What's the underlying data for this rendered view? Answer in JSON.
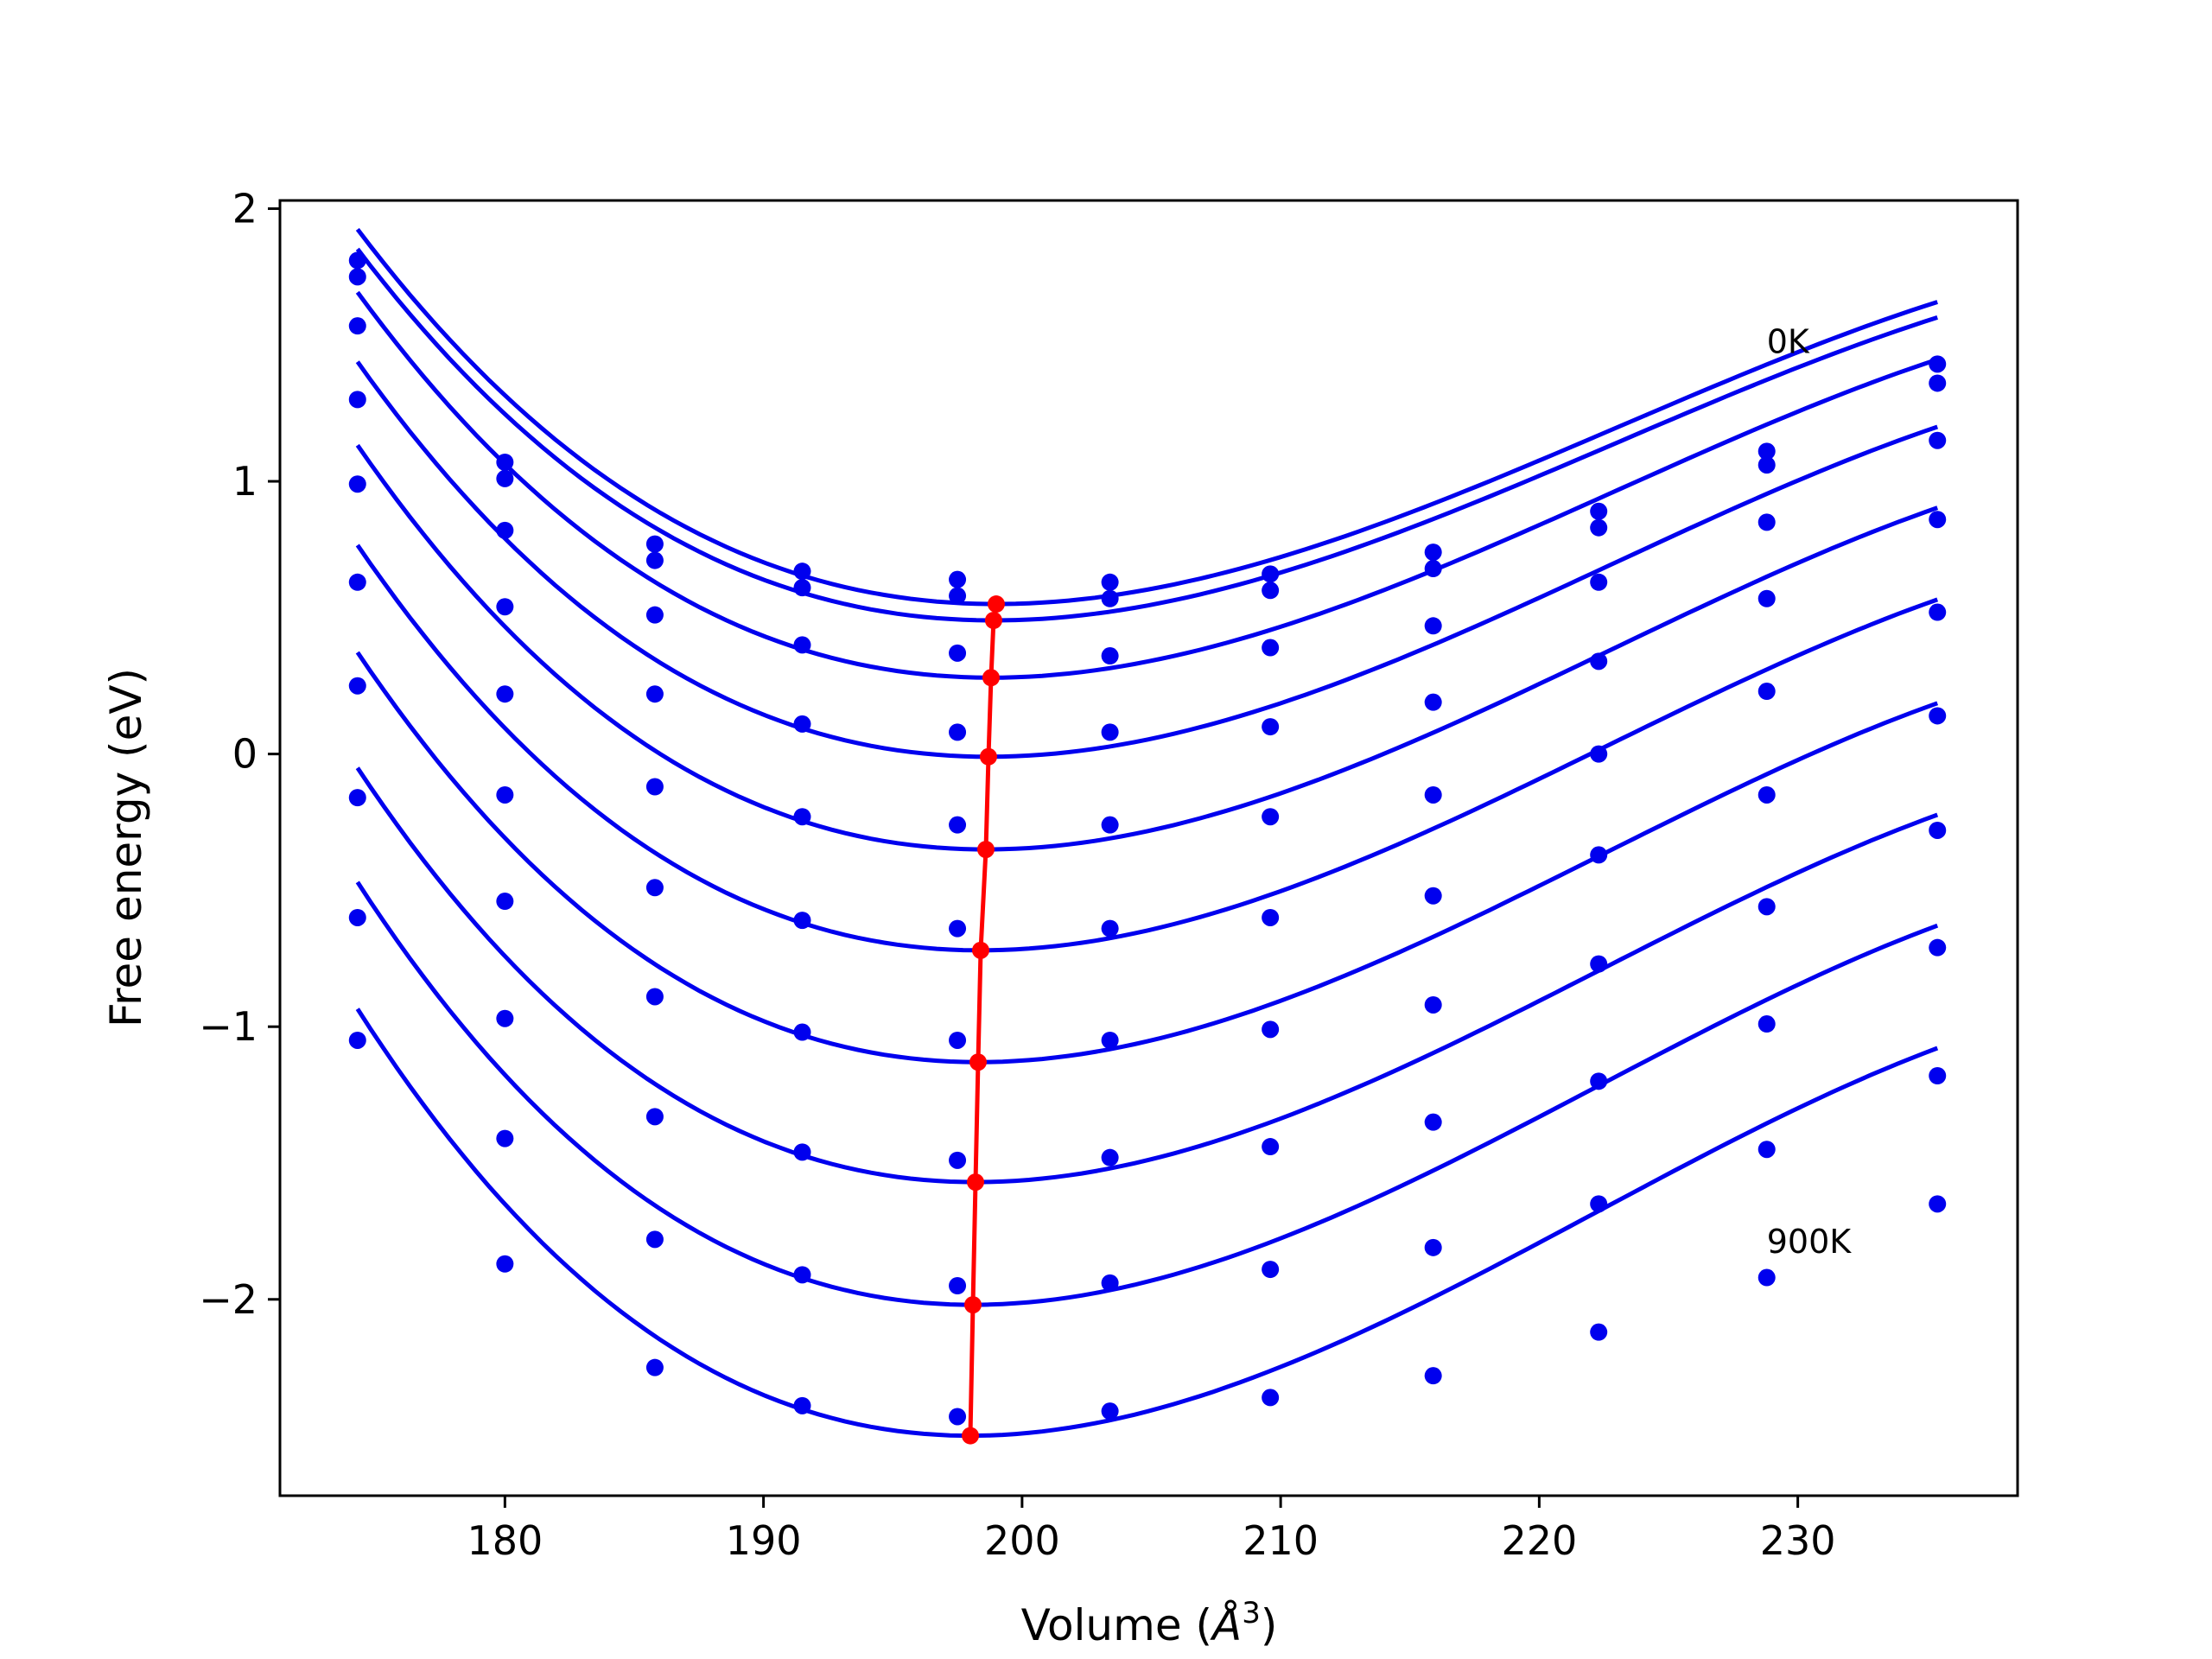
{
  "chart_data": {
    "type": "line",
    "xlabel": "Volume (",
    "xlabel_unit": "Å",
    "xlabel_exp": "3",
    "xlabel_close": ")",
    "ylabel": "Free energy (eV)",
    "xlim": [
      171.3,
      238.5
    ],
    "ylim": [
      -2.72,
      2.03
    ],
    "xticks": [
      180,
      190,
      200,
      210,
      220,
      230
    ],
    "yticks": [
      -2,
      -1,
      0,
      1,
      2
    ],
    "xtick_labels": [
      "180",
      "190",
      "200",
      "210",
      "220",
      "230"
    ],
    "ytick_labels": [
      "−2",
      "−1",
      "0",
      "1",
      "2"
    ],
    "grid": false,
    "legend": "none",
    "annotations": [
      {
        "text": "0K",
        "x": 228.8,
        "y": 1.47
      },
      {
        "text": "900K",
        "x": 228.8,
        "y": -1.83
      }
    ],
    "colors": {
      "fit": "#0000ee",
      "points": "#0000ee",
      "minimum": "#ff0000"
    },
    "volumes": [
      174.3,
      180.0,
      185.8,
      191.5,
      197.5,
      203.4,
      209.6,
      215.9,
      222.3,
      228.8,
      235.4
    ],
    "series": [
      {
        "points": [
          1.81,
          1.07,
          0.77,
          0.67,
          0.64,
          0.63,
          0.66,
          0.74,
          0.89,
          1.11,
          1.43
        ],
        "fit": {
          "v0": 199.0,
          "e0": 0.55,
          "a": 0.00168,
          "b": 0.0138
        }
      },
      {
        "points": [
          1.75,
          1.01,
          0.71,
          0.61,
          0.58,
          0.57,
          0.6,
          0.68,
          0.83,
          1.06,
          1.36
        ],
        "fit": {
          "v0": 198.9,
          "e0": 0.49,
          "a": 0.00168,
          "b": 0.0138
        }
      },
      {
        "points": [
          1.57,
          0.82,
          0.51,
          0.4,
          0.37,
          0.36,
          0.39,
          0.47,
          0.63,
          0.85,
          1.15
        ],
        "fit": {
          "v0": 198.8,
          "e0": 0.28,
          "a": 0.00176,
          "b": 0.0138
        }
      },
      {
        "points": [
          1.3,
          0.54,
          0.22,
          0.11,
          0.08,
          0.08,
          0.1,
          0.19,
          0.34,
          0.57,
          0.86
        ],
        "fit": {
          "v0": 198.7,
          "e0": -0.01,
          "a": 0.00182,
          "b": 0.0138
        }
      },
      {
        "points": [
          0.99,
          0.22,
          -0.12,
          -0.23,
          -0.26,
          -0.26,
          -0.23,
          -0.15,
          0.0,
          0.23,
          0.52
        ],
        "fit": {
          "v0": 198.6,
          "e0": -0.35,
          "a": 0.00188,
          "b": 0.0138
        }
      },
      {
        "points": [
          0.63,
          -0.15,
          -0.49,
          -0.61,
          -0.64,
          -0.64,
          -0.6,
          -0.52,
          -0.37,
          -0.15,
          0.14
        ],
        "fit": {
          "v0": 198.4,
          "e0": -0.72,
          "a": 0.00192,
          "b": 0.0138
        }
      },
      {
        "points": [
          0.25,
          -0.54,
          -0.89,
          -1.02,
          -1.05,
          -1.05,
          -1.01,
          -0.92,
          -0.77,
          -0.56,
          -0.28
        ],
        "fit": {
          "v0": 198.3,
          "e0": -1.13,
          "a": 0.00196,
          "b": 0.0138
        }
      },
      {
        "points": [
          -0.16,
          -0.97,
          -1.33,
          -1.46,
          -1.49,
          -1.48,
          -1.44,
          -1.35,
          -1.2,
          -0.99,
          -0.71
        ],
        "fit": {
          "v0": 198.2,
          "e0": -1.57,
          "a": 0.002,
          "b": 0.0138
        }
      },
      {
        "points": [
          -0.6,
          -1.41,
          -1.78,
          -1.91,
          -1.95,
          -1.94,
          -1.89,
          -1.81,
          -1.65,
          -1.45,
          -1.18
        ],
        "fit": {
          "v0": 198.1,
          "e0": -2.02,
          "a": 0.00206,
          "b": 0.0138
        }
      },
      {
        "points": [
          -1.05,
          -1.87,
          -2.25,
          -2.39,
          -2.43,
          -2.41,
          -2.36,
          -2.28,
          -2.12,
          -1.92,
          -1.65
        ],
        "fit": {
          "v0": 198.0,
          "e0": -2.5,
          "a": 0.0021,
          "b": 0.0138
        }
      }
    ],
    "minimum_line": {
      "x": [
        199.0,
        198.9,
        198.8,
        198.7,
        198.6,
        198.4,
        198.3,
        198.2,
        198.1,
        198.0
      ],
      "y": [
        0.55,
        0.49,
        0.28,
        -0.01,
        -0.35,
        -0.72,
        -1.13,
        -1.57,
        -2.02,
        -2.5
      ]
    },
    "fit_range": [
      174.3,
      235.4
    ]
  }
}
